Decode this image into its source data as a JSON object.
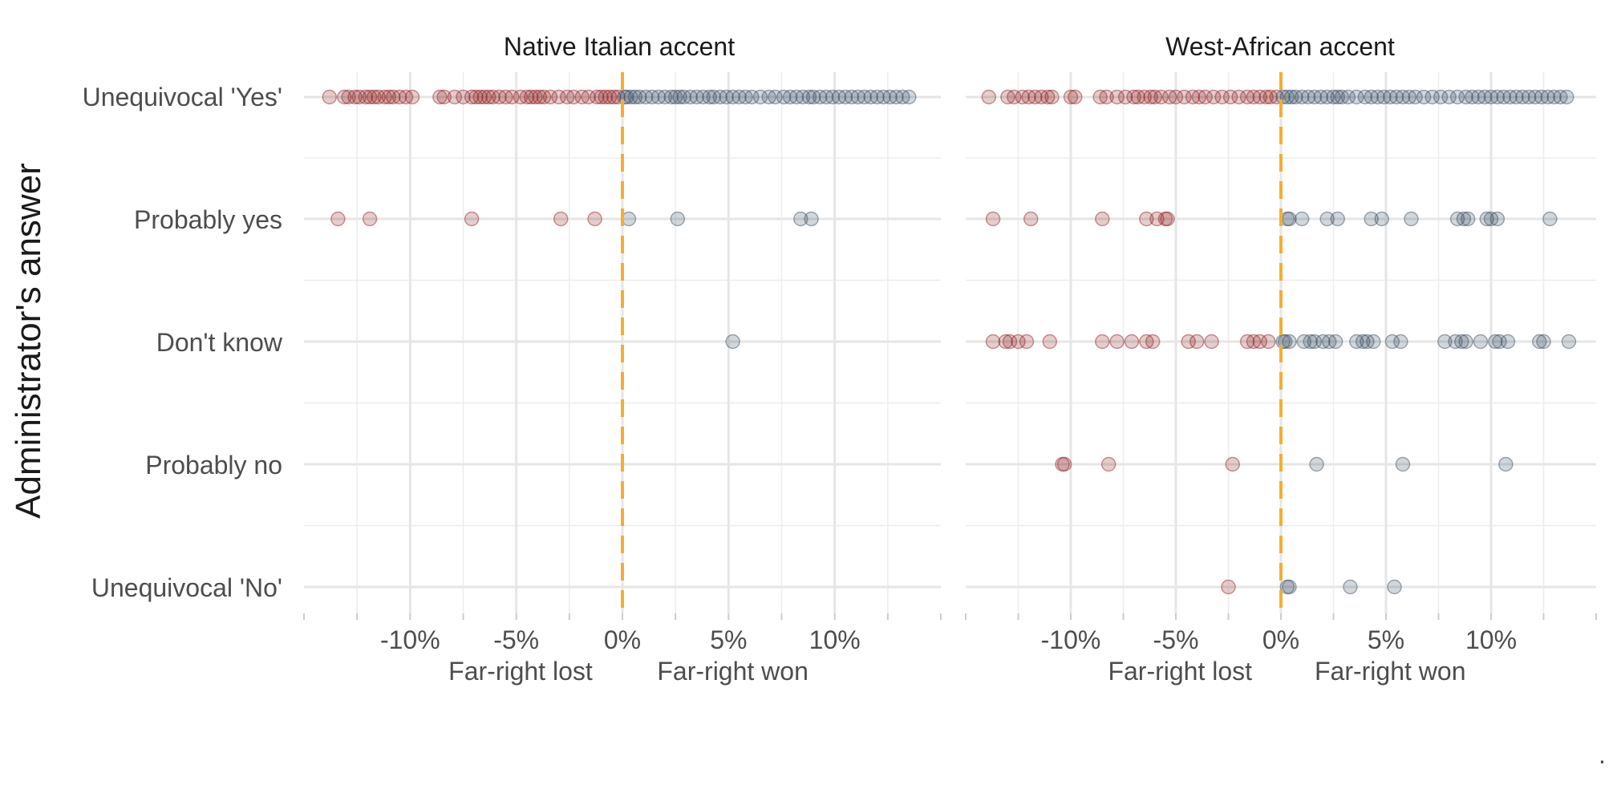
{
  "chart_data": {
    "type": "scatter",
    "ylabel": "Administrator's answer",
    "xlim": [
      -15,
      15
    ],
    "x_ticks": [
      "-10%",
      "-5%",
      "0%",
      "5%",
      "10%"
    ],
    "x_tick_values": [
      -10,
      -5,
      0,
      5,
      10
    ],
    "x_sublabels": {
      "left": "Far-right lost",
      "right": "Far-right won"
    },
    "categories": [
      "Unequivocal 'Yes'",
      "Probably yes",
      "Don't know",
      "Probably no",
      "Unequivocal 'No'"
    ],
    "colors": {
      "lost": "#8b1a1a",
      "won": "#34495e",
      "zero_line": "#f5ae30"
    },
    "grid": true,
    "footnote": ".",
    "panels": [
      {
        "title": "Native Italian accent",
        "points": {
          "Unequivocal 'Yes'": [
            -13.8,
            -13.1,
            -12.9,
            -12.6,
            -12.4,
            -12.1,
            -11.9,
            -11.7,
            -11.5,
            -11.2,
            -11.0,
            -10.8,
            -10.5,
            -10.2,
            -9.9,
            -8.6,
            -8.4,
            -7.9,
            -7.5,
            -7.1,
            -6.9,
            -6.7,
            -6.5,
            -6.3,
            -6.1,
            -5.8,
            -5.5,
            -5.2,
            -4.8,
            -4.5,
            -4.3,
            -4.1,
            -3.9,
            -3.7,
            -3.4,
            -3.0,
            -2.6,
            -2.3,
            -1.9,
            -1.6,
            -1.2,
            -1.0,
            -0.8,
            -0.6,
            -0.4,
            -0.2,
            0.1,
            0.2,
            0.4,
            0.6,
            0.8,
            1.1,
            1.4,
            1.7,
            2.0,
            2.3,
            2.5,
            2.7,
            2.9,
            3.2,
            3.5,
            3.8,
            4.1,
            4.3,
            4.6,
            4.9,
            5.2,
            5.5,
            5.8,
            6.1,
            6.5,
            6.9,
            7.2,
            7.6,
            7.9,
            8.2,
            8.5,
            8.8,
            9.0,
            9.3,
            9.6,
            9.9,
            10.2,
            10.5,
            10.8,
            11.1,
            11.4,
            11.7,
            12.0,
            12.3,
            12.6,
            12.9,
            13.2,
            13.5
          ],
          "Probably yes": [
            -13.4,
            -11.9,
            -7.1,
            -2.9,
            -1.3,
            0.3,
            2.6,
            8.4,
            8.9
          ],
          "Don't know": [
            5.2
          ],
          "Probably no": [],
          "Unequivocal 'No'": []
        }
      },
      {
        "title": "West-African accent",
        "points": {
          "Unequivocal 'Yes'": [
            -13.9,
            -13.0,
            -12.7,
            -12.3,
            -12.0,
            -11.7,
            -11.4,
            -11.1,
            -10.9,
            -10.0,
            -9.8,
            -8.6,
            -8.3,
            -7.8,
            -7.4,
            -7.0,
            -6.8,
            -6.5,
            -6.2,
            -6.0,
            -5.7,
            -5.3,
            -5.0,
            -4.6,
            -4.2,
            -3.9,
            -3.6,
            -3.2,
            -2.8,
            -2.4,
            -2.0,
            -1.6,
            -1.3,
            -1.0,
            -0.7,
            -0.5,
            -0.2,
            0.1,
            0.3,
            0.5,
            0.7,
            1.0,
            1.3,
            1.6,
            1.9,
            2.2,
            2.5,
            2.7,
            2.9,
            3.2,
            3.6,
            4.0,
            4.3,
            4.6,
            4.9,
            5.2,
            5.5,
            5.8,
            6.1,
            6.4,
            6.8,
            7.2,
            7.6,
            8.0,
            8.4,
            8.8,
            9.1,
            9.4,
            9.7,
            10.0,
            10.3,
            10.6,
            10.9,
            11.2,
            11.5,
            11.8,
            12.1,
            12.4,
            12.7,
            13.0,
            13.3,
            13.6
          ],
          "Probably yes": [
            -13.7,
            -11.9,
            -8.5,
            -6.4,
            -5.9,
            -5.5,
            -5.4,
            0.3,
            0.4,
            1.0,
            2.2,
            2.7,
            4.3,
            4.8,
            6.2,
            8.4,
            8.7,
            8.9,
            9.8,
            10.0,
            10.3,
            12.8
          ],
          "Don't know": [
            -13.7,
            -13.1,
            -12.9,
            -12.5,
            -12.1,
            -11.0,
            -8.5,
            -7.8,
            -7.1,
            -6.4,
            -6.1,
            -4.4,
            -4.0,
            -3.3,
            -1.6,
            -1.3,
            -1.0,
            -0.6,
            0.1,
            0.2,
            0.4,
            1.1,
            1.4,
            1.6,
            2.0,
            2.3,
            2.6,
            3.6,
            3.9,
            4.1,
            4.4,
            5.3,
            5.7,
            7.8,
            8.3,
            8.6,
            8.8,
            9.5,
            10.2,
            10.4,
            10.8,
            12.3,
            12.5,
            13.7
          ],
          "Probably no": [
            -10.4,
            -10.3,
            -8.2,
            -2.3,
            1.7,
            5.8,
            10.7
          ],
          "Unequivocal 'No'": [
            -2.5,
            0.3,
            0.4,
            3.3,
            5.4
          ]
        }
      }
    ]
  }
}
